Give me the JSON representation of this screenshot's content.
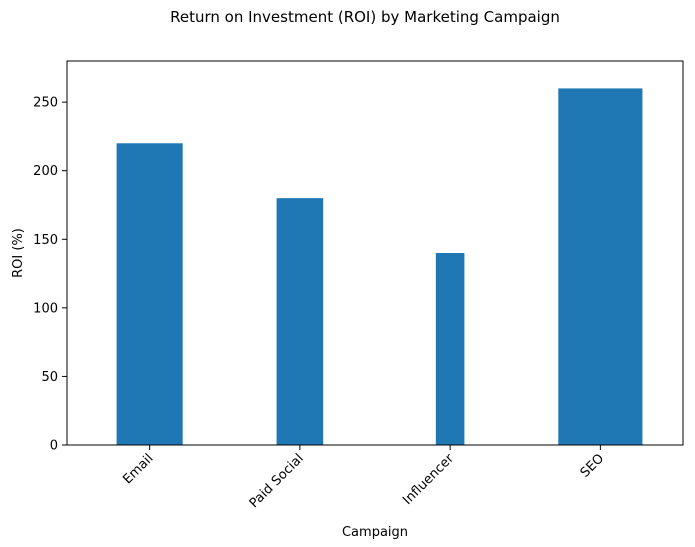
{
  "chart_data": {
    "type": "bar",
    "title": "Return on Investment (ROI) by Marketing Campaign",
    "xlabel": "Campaign",
    "ylabel": "ROI (%)",
    "categories": [
      "Email",
      "Paid Social",
      "Influencer",
      "SEO"
    ],
    "values": [
      220,
      180,
      140,
      260
    ],
    "relative_widths": [
      0.44,
      0.31,
      0.19,
      0.56
    ],
    "ylim": [
      0,
      280
    ],
    "yticks": [
      0,
      50,
      100,
      150,
      200,
      250
    ],
    "grid": false,
    "bar_color": "#1f77b4"
  }
}
